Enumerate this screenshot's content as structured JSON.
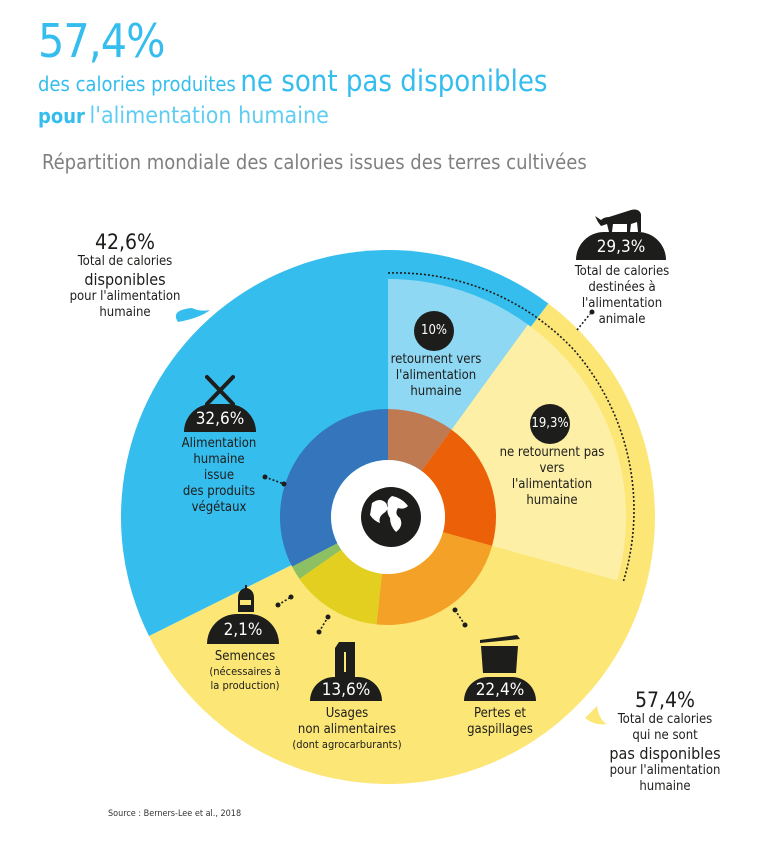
{
  "header": {
    "headline_value": "57,4%",
    "line2_small": "des calories produites",
    "line2_big": "ne sont pas disponibles",
    "line3_bold": "pour",
    "line3_light": "l'alimentation humaine",
    "subtitle": "Répartition mondiale des calories issues des terres cultivées"
  },
  "callouts": {
    "available": {
      "value": "42,6%",
      "lines": [
        "Total de calories",
        "disponibles",
        "pour l'alimentation",
        "humaine"
      ]
    },
    "animal": {
      "value": "29,3%",
      "icon": "cow-icon",
      "lines": [
        "Total de calories",
        "destinées à",
        "l'alimentation",
        "animale"
      ]
    },
    "unavailable": {
      "value": "57,4%",
      "lines": [
        "Total de calories",
        "qui ne sont",
        "pas disponibles",
        "pour l'alimentation",
        "humaine"
      ]
    },
    "returning": {
      "value": "10%",
      "lines": [
        "retournent vers",
        "l'alimentation",
        "humaine"
      ]
    },
    "not_returning": {
      "value": "19,3%",
      "lines": [
        "ne retournent pas",
        "vers",
        "l'alimentation",
        "humaine"
      ]
    },
    "plant_food": {
      "value": "32,6%",
      "icon": "fork-knife-icon",
      "lines": [
        "Alimentation",
        "humaine",
        "issue",
        "des produits",
        "végétaux"
      ]
    },
    "seeds": {
      "value": "2,1%",
      "icon": "seed-bag-icon",
      "lines": [
        "Semences",
        "(nécessaires à",
        "la production)"
      ]
    },
    "non_food": {
      "value": "13,6%",
      "icon": "fuel-can-icon",
      "lines": [
        "Usages",
        "non alimentaires",
        "(dont agrocarburants)"
      ]
    },
    "losses": {
      "value": "22,4%",
      "icon": "trash-bin-icon",
      "lines": [
        "Pertes et",
        "gaspillages"
      ]
    }
  },
  "source": "Source : Berners-Lee et al., 2018",
  "chart_data": {
    "type": "pie",
    "title": "Répartition mondiale des calories issues des terres cultivées",
    "center_icon": "globe-icon",
    "outer_ring": [
      {
        "name": "Total de calories disponibles pour l'alimentation humaine",
        "value": 42.6,
        "color": "#35BDEE"
      },
      {
        "name": "Total de calories qui ne sont pas disponibles pour l'alimentation humaine",
        "value": 57.4,
        "color": "#FCE676"
      }
    ],
    "animal_feed_ring": [
      {
        "name": "retournent vers l'alimentation humaine",
        "value": 10,
        "color": "#8ED8F4"
      },
      {
        "name": "ne retournent pas vers l'alimentation humaine",
        "value": 19.3,
        "color": "#FDF0A6"
      }
    ],
    "inner_ring": [
      {
        "name": "retournent vers l'alimentation humaine",
        "value": 10,
        "color": "#BF7A52"
      },
      {
        "name": "ne retournent pas vers l'alimentation humaine",
        "value": 19.3,
        "color": "#EC6008"
      },
      {
        "name": "Pertes et gaspillages",
        "value": 22.4,
        "color": "#F4A127"
      },
      {
        "name": "Usages non alimentaires",
        "value": 13.6,
        "color": "#E2CF1F"
      },
      {
        "name": "Semences",
        "value": 2.1,
        "color": "#8DC063"
      },
      {
        "name": "Alimentation humaine issue des produits végétaux",
        "value": 32.6,
        "color": "#3475BC"
      }
    ]
  }
}
